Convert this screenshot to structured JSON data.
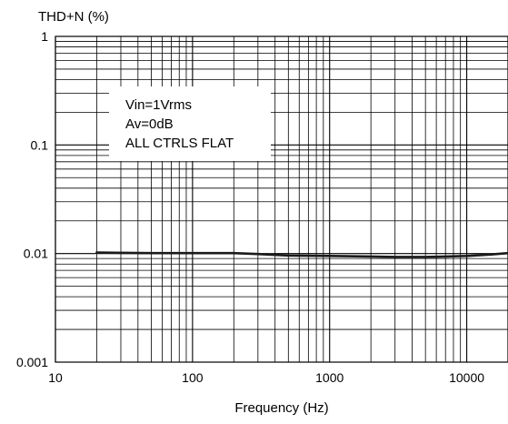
{
  "chart_data": {
    "type": "line",
    "title": "",
    "ylabel": "THD+N (%)",
    "xlabel": "Frequency (Hz)",
    "x_scale": "log",
    "y_scale": "log",
    "xlim": [
      10,
      20000
    ],
    "ylim": [
      0.001,
      1
    ],
    "grid": true,
    "x_ticks": [
      {
        "value": 10,
        "label": "10"
      },
      {
        "value": 100,
        "label": "100"
      },
      {
        "value": 1000,
        "label": "1000"
      },
      {
        "value": 10000,
        "label": "10000"
      }
    ],
    "y_ticks": [
      {
        "value": 1,
        "label": "1"
      },
      {
        "value": 0.1,
        "label": "0.1"
      },
      {
        "value": 0.01,
        "label": "0.01"
      },
      {
        "value": 0.001,
        "label": "0.001"
      }
    ],
    "series": [
      {
        "color": "#1a1a1a",
        "x": [
          20,
          50,
          100,
          200,
          300,
          500,
          1000,
          2000,
          3000,
          5000,
          7000,
          10000,
          15000,
          20000
        ],
        "y": [
          0.0102,
          0.0101,
          0.0101,
          0.0101,
          0.0099,
          0.0096,
          0.0095,
          0.0094,
          0.0093,
          0.0093,
          0.0094,
          0.0095,
          0.0098,
          0.0101
        ]
      }
    ],
    "annotation": {
      "lines": [
        "Vin=1Vrms",
        "Av=0dB",
        "ALL CTRLS FLAT"
      ]
    }
  }
}
